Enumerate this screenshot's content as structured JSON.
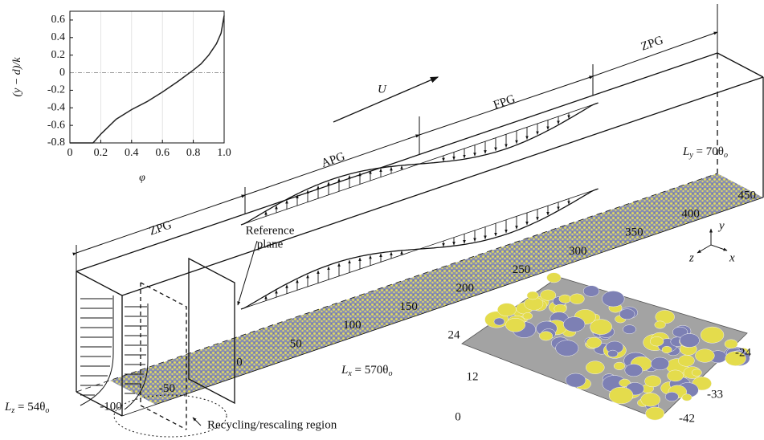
{
  "chart_data": {
    "type": "line",
    "x_label": "φ",
    "y_label": "(y − d)/k",
    "x": [
      0,
      0.15,
      0.2,
      0.3,
      0.4,
      0.5,
      0.6,
      0.7,
      0.8,
      0.85,
      0.9,
      0.95,
      0.98,
      1.0
    ],
    "series": [
      {
        "color": "#222222",
        "values": [
          -0.8,
          -0.8,
          -0.7,
          -0.53,
          -0.42,
          -0.33,
          -0.22,
          -0.1,
          0.03,
          0.1,
          0.2,
          0.33,
          0.45,
          0.65
        ]
      }
    ],
    "xlim": [
      0,
      1
    ],
    "xticks": [
      0,
      0.2,
      0.4,
      0.6,
      0.8,
      {
        "value": 1,
        "label": "1.0"
      }
    ],
    "ylim": [
      -0.8,
      0.7
    ],
    "yticks": [
      -0.8,
      -0.6,
      -0.4,
      -0.2,
      0,
      0.2,
      0.4,
      0.6
    ],
    "grid": true,
    "zero_line": true
  },
  "diagram": {
    "regions": [
      "ZPG",
      "APG",
      "FPG",
      "ZPG"
    ],
    "velocity": "U",
    "reference_plane": [
      "Reference",
      "plane"
    ],
    "ly": [
      "L",
      "y",
      " = 70θ",
      "o"
    ],
    "lx": [
      "L",
      "x",
      " = 570θ",
      "o"
    ],
    "lz": [
      "L",
      "z",
      " = 54θ",
      "o"
    ],
    "recycling": "Recycling/rescaling region",
    "streamwise_ticks": [
      -100,
      -50,
      0,
      50,
      100,
      150,
      200,
      250,
      300,
      350,
      400,
      450
    ],
    "triad": {
      "y": "y",
      "z": "z",
      "x": "x"
    },
    "surface_inset": {
      "left_ticks": [
        24,
        12,
        0
      ],
      "right_ticks": [
        -24,
        -33,
        -42
      ]
    }
  }
}
